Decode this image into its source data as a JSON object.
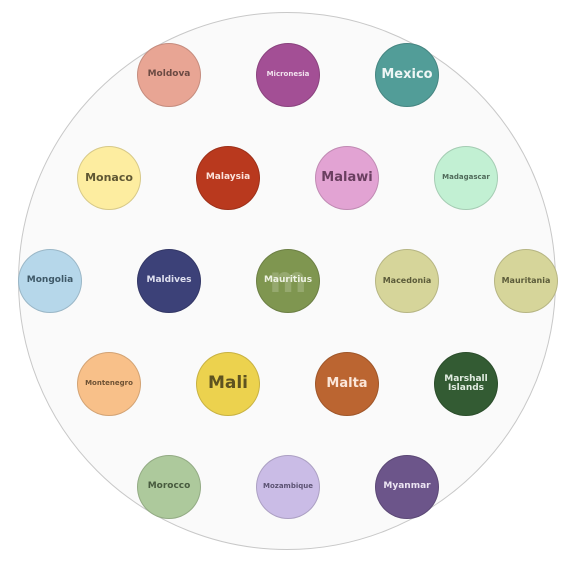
{
  "tiles": [
    {
      "id": "moldova",
      "label": "Moldova",
      "color": "#e8a594",
      "text_color": "#6b4a43"
    },
    {
      "id": "micronesia",
      "label": "Micronesia",
      "color": "#a34f95",
      "text_color": "#f1e2ee"
    },
    {
      "id": "mexico",
      "label": "Mexico",
      "color": "#529d98",
      "text_color": "#eef6f5"
    },
    {
      "id": "monaco",
      "label": "Monaco",
      "color": "#fdeda0",
      "text_color": "#5f5733"
    },
    {
      "id": "malaysia",
      "label": "Malaysia",
      "color": "#b9391e",
      "text_color": "#fbe3dc"
    },
    {
      "id": "malawi",
      "label": "Malawi",
      "color": "#e2a3d3",
      "text_color": "#6a3f60"
    },
    {
      "id": "madagascar",
      "label": "Madagascar",
      "color": "#c2f0d3",
      "text_color": "#506a5a"
    },
    {
      "id": "mongolia",
      "label": "Mongolia",
      "color": "#b6d7ea",
      "text_color": "#3f5968"
    },
    {
      "id": "maldives",
      "label": "Maldives",
      "color": "#3c4178",
      "text_color": "#dfe0ef"
    },
    {
      "id": "mauritius",
      "label": "Mauritius",
      "color": "#7f9650",
      "text_color": "#eef2e3",
      "watermark": "m"
    },
    {
      "id": "macedonia",
      "label": "Macedonia",
      "color": "#d6d59a",
      "text_color": "#5c5c3a"
    },
    {
      "id": "mauritania",
      "label": "Mauritania",
      "color": "#d6d59a",
      "text_color": "#5c5c3a"
    },
    {
      "id": "montenegro",
      "label": "Montenegro",
      "color": "#f8c089",
      "text_color": "#6e5234"
    },
    {
      "id": "mali",
      "label": "Mali",
      "color": "#ecd24e",
      "text_color": "#5e5320"
    },
    {
      "id": "malta",
      "label": "Malta",
      "color": "#bb6531",
      "text_color": "#fbe6d9"
    },
    {
      "id": "marshall",
      "label": "Marshall Islands",
      "color": "#335b33",
      "text_color": "#e1ece1"
    },
    {
      "id": "morocco",
      "label": "Morocco",
      "color": "#adc99c",
      "text_color": "#475a3e"
    },
    {
      "id": "mozambique",
      "label": "Mozambique",
      "color": "#cabce6",
      "text_color": "#5c5373"
    },
    {
      "id": "myanmar",
      "label": "Myanmar",
      "color": "#6c558a",
      "text_color": "#ece5f3"
    }
  ]
}
